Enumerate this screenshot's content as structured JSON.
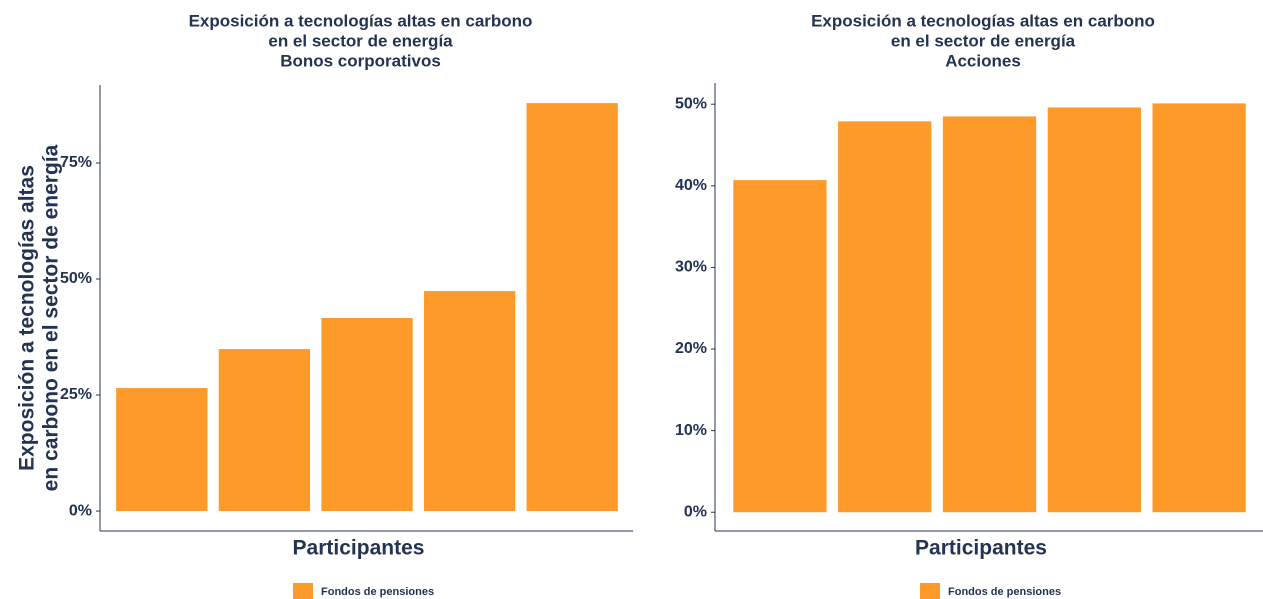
{
  "chart_data": [
    {
      "type": "bar",
      "title": [
        "Exposición a tecnologías altas en carbono",
        "en el sector de energía",
        "Bonos corporativos"
      ],
      "y_label": [
        "Exposición a tecnologías altas",
        "en carbono en el sector de energía"
      ],
      "x_label": "Participantes",
      "categories": [
        null,
        null,
        null,
        null,
        null
      ],
      "series": [
        {
          "name": "Fondos de pensiones",
          "color": "#fe9a2a",
          "values": [
            26.5,
            34.9,
            41.6,
            47.4,
            87.9
          ]
        }
      ],
      "ylim": [
        -4.3,
        91.8
      ],
      "yticks": [
        {
          "value": 0,
          "label": "0%"
        },
        {
          "value": 25,
          "label": "25%"
        },
        {
          "value": 50,
          "label": "50%"
        },
        {
          "value": 75,
          "label": "75%"
        }
      ],
      "grid": false,
      "legend": "bottom"
    },
    {
      "type": "bar",
      "title": [
        "Exposición a tecnologías altas en carbono",
        "en el sector de energía",
        "Acciones"
      ],
      "x_label": "Participantes",
      "categories": [
        null,
        null,
        null,
        null,
        null
      ],
      "series": [
        {
          "name": "Fondos de pensiones",
          "color": "#fe9a2a",
          "values": [
            40.7,
            47.9,
            48.5,
            49.6,
            50.1
          ]
        }
      ],
      "ylim": [
        -2.3,
        52.6
      ],
      "yticks": [
        {
          "value": 0,
          "label": "0%"
        },
        {
          "value": 10,
          "label": "10%"
        },
        {
          "value": 20,
          "label": "20%"
        },
        {
          "value": 30,
          "label": "30%"
        },
        {
          "value": 40,
          "label": "40%"
        },
        {
          "value": 50,
          "label": "50%"
        }
      ],
      "grid": false,
      "legend": "bottom"
    }
  ]
}
